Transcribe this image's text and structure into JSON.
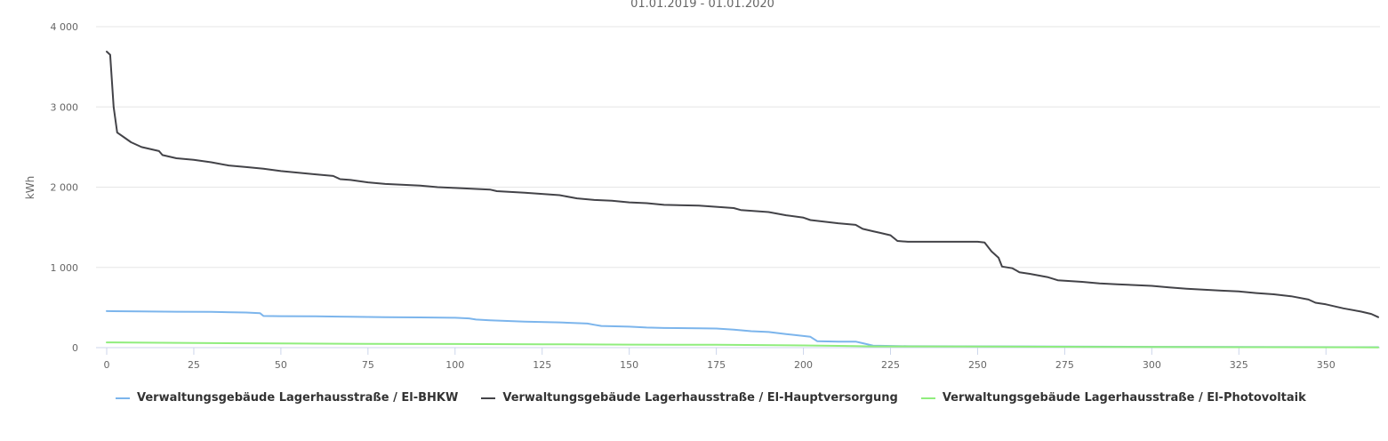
{
  "chart_data": {
    "type": "line",
    "subtitle": "01.01.2019 - 01.01.2020",
    "ylabel": "kWh",
    "xlabel": "",
    "xlim": [
      0,
      365
    ],
    "ylim": [
      0,
      4000
    ],
    "x_ticks": [
      "0",
      "25",
      "50",
      "75",
      "100",
      "125",
      "150",
      "175",
      "200",
      "225",
      "250",
      "275",
      "300",
      "325",
      "350"
    ],
    "y_ticks": [
      "0",
      "1 000",
      "2 000",
      "3 000",
      "4 000"
    ],
    "grid": true,
    "legend_position": "bottom",
    "series": [
      {
        "name": "Verwaltungsgebäude Lagerhausstraße / El-BHKW",
        "color": "#7cb5ec",
        "points": [
          [
            0,
            455
          ],
          [
            10,
            452
          ],
          [
            20,
            448
          ],
          [
            30,
            445
          ],
          [
            40,
            438
          ],
          [
            44,
            430
          ],
          [
            45,
            395
          ],
          [
            50,
            392
          ],
          [
            60,
            390
          ],
          [
            70,
            385
          ],
          [
            80,
            380
          ],
          [
            90,
            377
          ],
          [
            100,
            372
          ],
          [
            104,
            365
          ],
          [
            106,
            350
          ],
          [
            110,
            340
          ],
          [
            120,
            325
          ],
          [
            130,
            315
          ],
          [
            138,
            300
          ],
          [
            140,
            285
          ],
          [
            142,
            270
          ],
          [
            150,
            262
          ],
          [
            155,
            250
          ],
          [
            160,
            245
          ],
          [
            170,
            242
          ],
          [
            175,
            238
          ],
          [
            180,
            225
          ],
          [
            185,
            205
          ],
          [
            190,
            195
          ],
          [
            195,
            170
          ],
          [
            200,
            145
          ],
          [
            202,
            135
          ],
          [
            204,
            80
          ],
          [
            210,
            75
          ],
          [
            215,
            75
          ],
          [
            217,
            55
          ],
          [
            220,
            25
          ],
          [
            230,
            18
          ],
          [
            260,
            15
          ],
          [
            300,
            10
          ],
          [
            365,
            5
          ]
        ]
      },
      {
        "name": "Verwaltungsgebäude Lagerhausstraße / El-Hauptversorgung",
        "color": "#434348",
        "points": [
          [
            0,
            3690
          ],
          [
            1,
            3650
          ],
          [
            2,
            3000
          ],
          [
            3,
            2680
          ],
          [
            5,
            2620
          ],
          [
            7,
            2560
          ],
          [
            10,
            2500
          ],
          [
            15,
            2450
          ],
          [
            16,
            2400
          ],
          [
            20,
            2360
          ],
          [
            25,
            2340
          ],
          [
            30,
            2310
          ],
          [
            35,
            2270
          ],
          [
            40,
            2250
          ],
          [
            45,
            2230
          ],
          [
            50,
            2200
          ],
          [
            55,
            2180
          ],
          [
            60,
            2160
          ],
          [
            65,
            2140
          ],
          [
            67,
            2100
          ],
          [
            70,
            2090
          ],
          [
            75,
            2060
          ],
          [
            80,
            2040
          ],
          [
            90,
            2020
          ],
          [
            95,
            2000
          ],
          [
            100,
            1990
          ],
          [
            110,
            1970
          ],
          [
            112,
            1950
          ],
          [
            120,
            1930
          ],
          [
            130,
            1900
          ],
          [
            135,
            1860
          ],
          [
            140,
            1840
          ],
          [
            145,
            1830
          ],
          [
            150,
            1810
          ],
          [
            155,
            1800
          ],
          [
            160,
            1780
          ],
          [
            170,
            1770
          ],
          [
            180,
            1740
          ],
          [
            182,
            1715
          ],
          [
            190,
            1690
          ],
          [
            195,
            1650
          ],
          [
            200,
            1620
          ],
          [
            202,
            1590
          ],
          [
            210,
            1550
          ],
          [
            215,
            1530
          ],
          [
            217,
            1480
          ],
          [
            220,
            1450
          ],
          [
            222,
            1430
          ],
          [
            225,
            1400
          ],
          [
            227,
            1330
          ],
          [
            230,
            1320
          ],
          [
            250,
            1320
          ],
          [
            252,
            1310
          ],
          [
            254,
            1200
          ],
          [
            256,
            1120
          ],
          [
            257,
            1010
          ],
          [
            260,
            990
          ],
          [
            262,
            940
          ],
          [
            265,
            920
          ],
          [
            270,
            880
          ],
          [
            273,
            840
          ],
          [
            280,
            820
          ],
          [
            285,
            800
          ],
          [
            290,
            790
          ],
          [
            300,
            770
          ],
          [
            305,
            750
          ],
          [
            310,
            735
          ],
          [
            320,
            710
          ],
          [
            325,
            700
          ],
          [
            330,
            680
          ],
          [
            335,
            665
          ],
          [
            340,
            640
          ],
          [
            345,
            600
          ],
          [
            347,
            560
          ],
          [
            350,
            540
          ],
          [
            355,
            490
          ],
          [
            360,
            450
          ],
          [
            363,
            420
          ],
          [
            365,
            380
          ]
        ]
      },
      {
        "name": "Verwaltungsgebäude Lagerhausstraße / El-Photovoltaik",
        "color": "#90ed7d",
        "points": [
          [
            0,
            65
          ],
          [
            25,
            58
          ],
          [
            50,
            52
          ],
          [
            75,
            48
          ],
          [
            100,
            45
          ],
          [
            125,
            42
          ],
          [
            150,
            38
          ],
          [
            175,
            35
          ],
          [
            200,
            28
          ],
          [
            215,
            20
          ],
          [
            220,
            15
          ],
          [
            250,
            13
          ],
          [
            280,
            10
          ],
          [
            300,
            8
          ],
          [
            330,
            5
          ],
          [
            365,
            3
          ]
        ]
      }
    ]
  }
}
